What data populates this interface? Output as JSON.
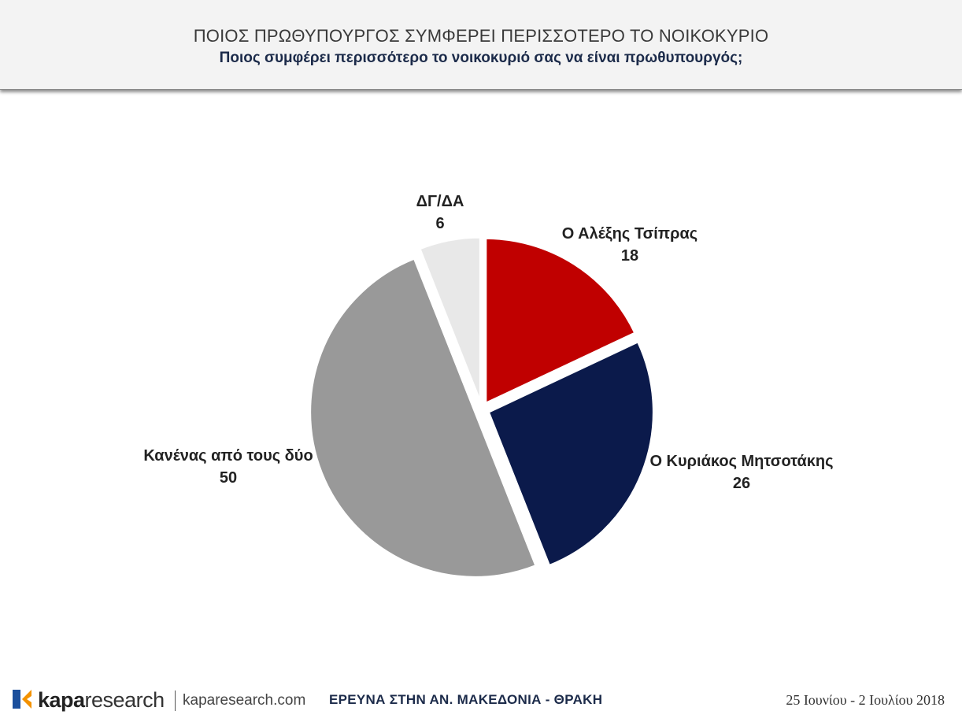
{
  "header": {
    "title": "ΠΟΙΟΣ ΠΡΩΘΥΠΟΥΡΓΟΣ ΣΥΜΦΕΡΕΙ ΠΕΡΙΣΣΟΤΕΡΟ ΤΟ ΝΟΙΚΟΚΥΡΙΟ",
    "subtitle": "Ποιος συμφέρει περισσότερο το νοικοκυριό σας να είναι πρωθυπουργός;"
  },
  "chart_data": {
    "type": "pie",
    "title": "ΠΟΙΟΣ ΠΡΩΘΥΠΟΥΡΓΟΣ ΣΥΜΦΕΡΕΙ ΠΕΡΙΣΣΟΤΕΡΟ ΤΟ ΝΟΙΚΟΚΥΡΙΟ",
    "subtitle": "Ποιος συμφέρει περισσότερο το νοικοκυριό σας να είναι πρωθυπουργός;",
    "exploded": true,
    "legend": "none",
    "slices": [
      {
        "label": "Ο Αλέξης Τσίπρας",
        "value": 18,
        "color": "#c00000"
      },
      {
        "label": "Ο Κυριάκος Μητσοτάκης",
        "value": 26,
        "color": "#0b1a4b"
      },
      {
        "label": "Κανένας από τους δύο",
        "value": 50,
        "color": "#999999"
      },
      {
        "label": "ΔΓ/ΔΑ",
        "value": 6,
        "color": "#e8e8e8"
      }
    ]
  },
  "footer": {
    "brand_bold": "kapa",
    "brand_rest": "research",
    "url": "kaparesearch.com",
    "survey": "ΕΡΕΥΝΑ ΣΤΗΝ ΑΝ. ΜΑΚΕΔΟΝΙΑ - ΘΡΑΚΗ",
    "date": "25 Ιουνίου - 2 Ιουλίου 2018",
    "logo_colors": [
      "#1b4f9c",
      "#f39200"
    ]
  }
}
